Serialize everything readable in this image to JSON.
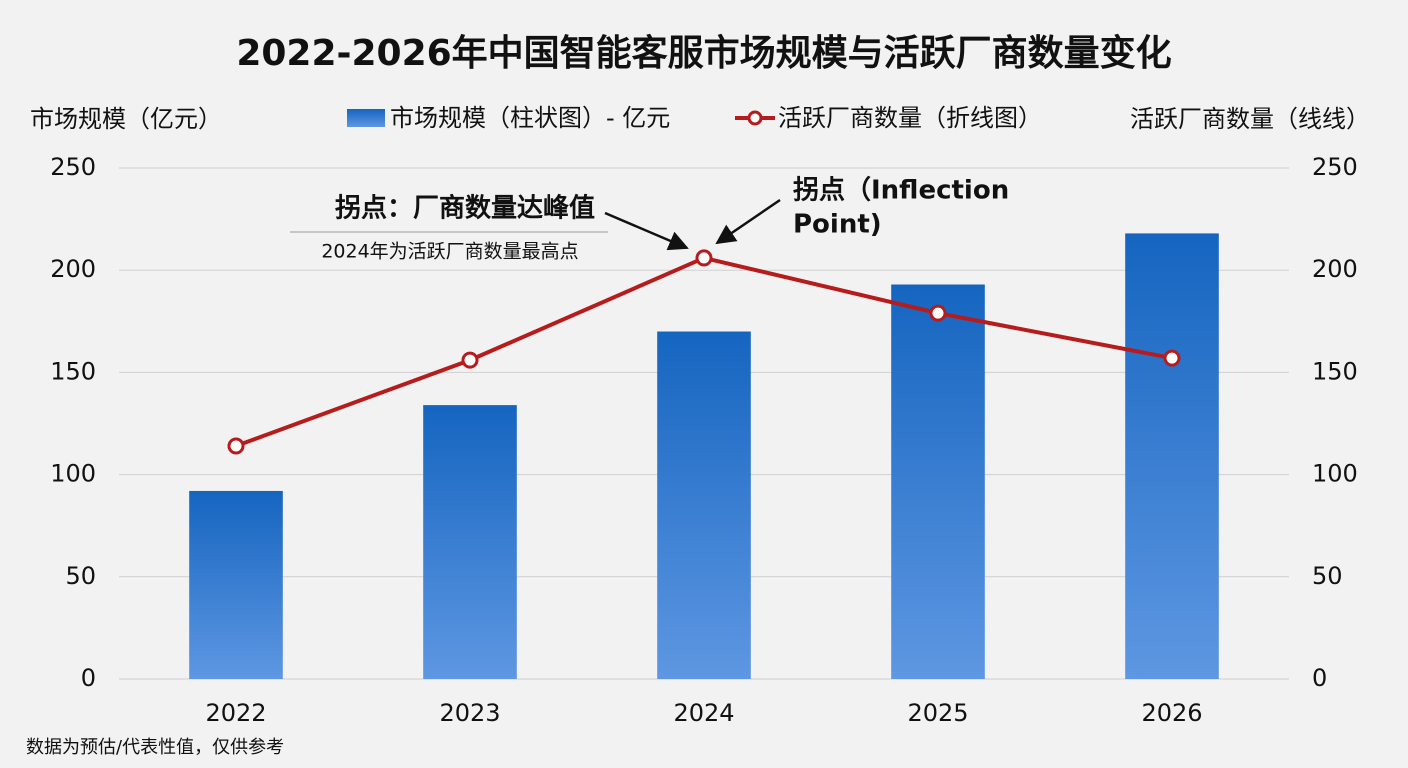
{
  "chart_data": {
    "type": "bar",
    "title": "2022-2026年中国智能客服市场规模与活跃厂商数量变化",
    "y_label": "市场规模（亿元）",
    "y2_label": "活跃厂商数量（线线）",
    "categories": [
      "2022",
      "2023",
      "2024",
      "2025",
      "2026"
    ],
    "series": [
      {
        "name": "市场规模（柱状图）- 亿元",
        "type": "bar",
        "color": "#1565c0",
        "values": [
          92,
          134,
          170,
          193,
          218
        ]
      },
      {
        "name": "活跃厂商数量（折线图）",
        "type": "line",
        "axis": "y2",
        "color": "#b71c1c",
        "values": [
          114,
          156,
          206,
          179,
          157
        ]
      }
    ],
    "ylim": [
      0,
      250
    ],
    "yticks": [
      0,
      50,
      100,
      150,
      200,
      250
    ],
    "y2lim": [
      0,
      250
    ],
    "y2ticks": [
      0,
      50,
      100,
      150,
      200,
      250
    ],
    "grid": true,
    "annotations": [
      {
        "text": "拐点：厂商数量达峰值",
        "subtext": "2024年为活跃厂商数量最高点"
      },
      {
        "lines": [
          "拐点（Inflection",
          "Point)"
        ]
      }
    ],
    "note": "数据为预估/代表性值，仅供参考"
  }
}
